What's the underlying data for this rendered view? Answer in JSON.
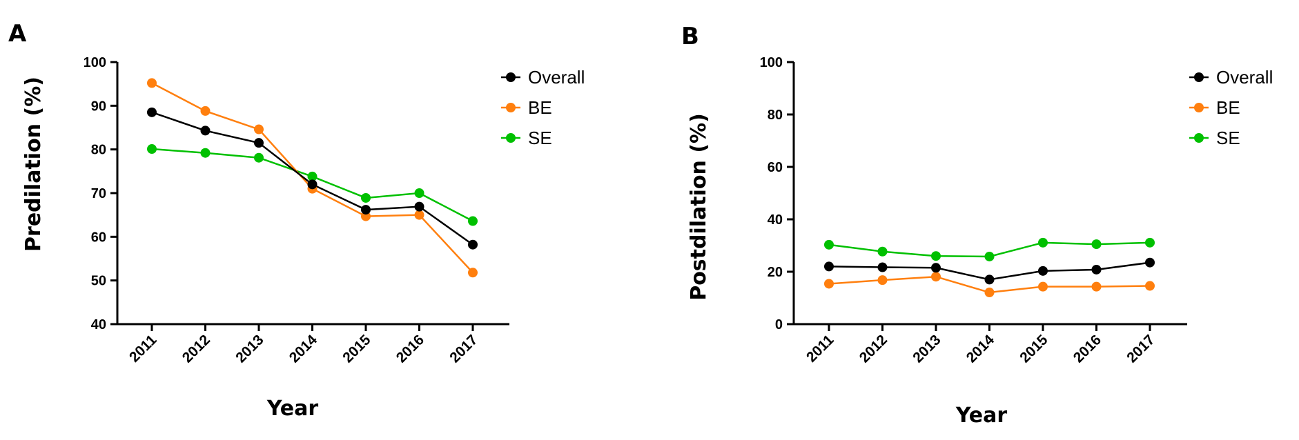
{
  "chart_data": [
    {
      "type": "line",
      "panel": "A",
      "xlabel": "Year",
      "ylabel": "Predilation (%)",
      "ylim": [
        40,
        100
      ],
      "yticks": [
        "40",
        "50",
        "60",
        "70",
        "80",
        "90",
        "100"
      ],
      "categories": [
        "2011",
        "2012",
        "2013",
        "2014",
        "2015",
        "2016",
        "2017"
      ],
      "series": [
        {
          "name": "Overall",
          "color": "#000000",
          "values": [
            88.5,
            84.3,
            81.5,
            72.0,
            66.2,
            66.9,
            58.2
          ]
        },
        {
          "name": "BE",
          "color": "#ff7f0e",
          "values": [
            95.2,
            88.8,
            84.6,
            71.0,
            64.7,
            65.0,
            51.8
          ]
        },
        {
          "name": "SE",
          "color": "#00c000",
          "values": [
            80.1,
            79.2,
            78.1,
            73.8,
            68.9,
            70.0,
            63.6
          ]
        }
      ]
    },
    {
      "type": "line",
      "panel": "B",
      "xlabel": "Year",
      "ylabel": "Postdilation (%)",
      "ylim": [
        0,
        100
      ],
      "yticks": [
        "0",
        "20",
        "40",
        "60",
        "80",
        "100"
      ],
      "categories": [
        "2011",
        "2012",
        "2013",
        "2014",
        "2015",
        "2016",
        "2017"
      ],
      "series": [
        {
          "name": "Overall",
          "color": "#000000",
          "values": [
            22.0,
            21.7,
            21.5,
            17.0,
            20.3,
            20.8,
            23.5
          ]
        },
        {
          "name": "BE",
          "color": "#ff7f0e",
          "values": [
            15.4,
            16.8,
            18.1,
            12.1,
            14.3,
            14.3,
            14.6
          ]
        },
        {
          "name": "SE",
          "color": "#00c000",
          "values": [
            30.3,
            27.7,
            26.0,
            25.8,
            31.1,
            30.5,
            31.1
          ]
        }
      ]
    }
  ]
}
